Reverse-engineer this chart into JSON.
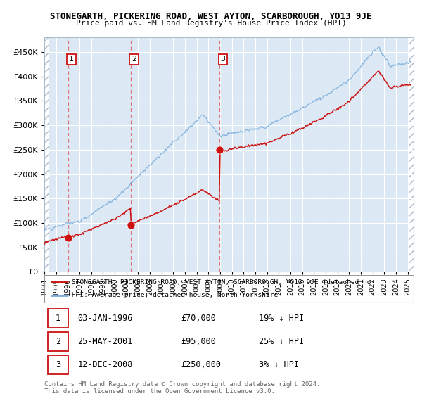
{
  "title": "STONEGARTH, PICKERING ROAD, WEST AYTON, SCARBOROUGH, YO13 9JE",
  "subtitle": "Price paid vs. HM Land Registry's House Price Index (HPI)",
  "sales": [
    {
      "date": 1996.04,
      "price": 70000,
      "label": "1"
    },
    {
      "date": 2001.4,
      "price": 95000,
      "label": "2"
    },
    {
      "date": 2008.95,
      "price": 250000,
      "label": "3"
    }
  ],
  "sale_dates_dashed": [
    1996.04,
    2001.4,
    2008.95
  ],
  "hpi_line_color": "#7aaddc",
  "price_line_color": "#cc1111",
  "sale_dot_color": "#cc1111",
  "box_edge_color": "#cc1111",
  "legend_price_label": "STONEGARTH, PICKERING ROAD, WEST AYTON, SCARBOROUGH, YO13 9JE (detached ho",
  "legend_hpi_label": "HPI: Average price, detached house, North Yorkshire",
  "table_rows": [
    {
      "num": "1",
      "date": "03-JAN-1996",
      "price": "£70,000",
      "note": "19% ↓ HPI"
    },
    {
      "num": "2",
      "date": "25-MAY-2001",
      "price": "£95,000",
      "note": "25% ↓ HPI"
    },
    {
      "num": "3",
      "date": "12-DEC-2008",
      "price": "£250,000",
      "note": "3% ↓ HPI"
    }
  ],
  "footer": "Contains HM Land Registry data © Crown copyright and database right 2024.\nThis data is licensed under the Open Government Licence v3.0.",
  "ylim": [
    0,
    480000
  ],
  "yticks": [
    0,
    50000,
    100000,
    150000,
    200000,
    250000,
    300000,
    350000,
    400000,
    450000
  ],
  "xlim": [
    1994,
    2025.5
  ],
  "xticks": [
    1994,
    1995,
    1996,
    1997,
    1998,
    1999,
    2000,
    2001,
    2002,
    2003,
    2004,
    2005,
    2006,
    2007,
    2008,
    2009,
    2010,
    2011,
    2012,
    2013,
    2014,
    2015,
    2016,
    2017,
    2018,
    2019,
    2020,
    2021,
    2022,
    2023,
    2024,
    2025
  ],
  "bg_color": "#dce9f5",
  "hatch_color": "#c8d8e8"
}
